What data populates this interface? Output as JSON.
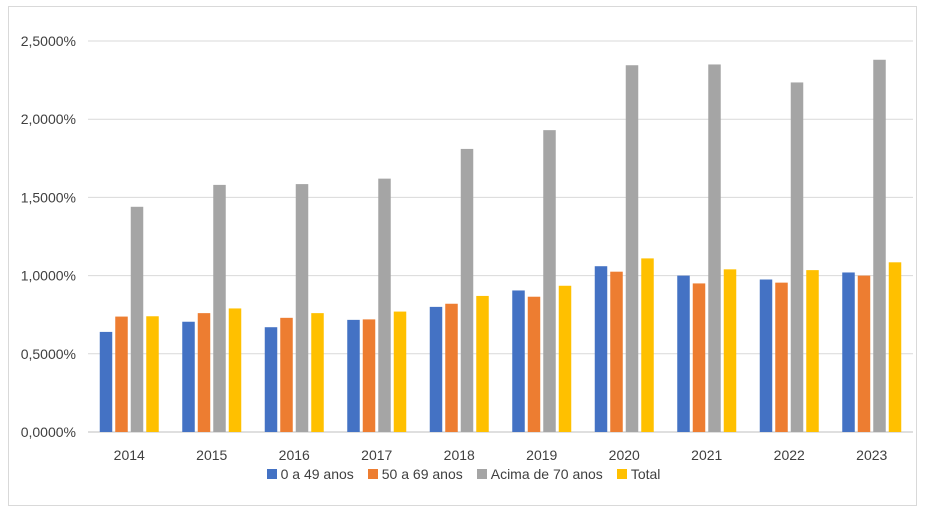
{
  "chart_data": {
    "type": "bar",
    "categories": [
      "2014",
      "2015",
      "2016",
      "2017",
      "2018",
      "2019",
      "2020",
      "2021",
      "2022",
      "2023"
    ],
    "series": [
      {
        "name": "0 a 49 anos",
        "color": "#4472c4",
        "values": [
          0.64,
          0.705,
          0.67,
          0.717,
          0.8,
          0.905,
          1.06,
          1.0,
          0.975,
          1.02
        ]
      },
      {
        "name": "50 a 69 anos",
        "color": "#ed7d31",
        "values": [
          0.738,
          0.76,
          0.73,
          0.72,
          0.82,
          0.865,
          1.025,
          0.95,
          0.955,
          1.0
        ]
      },
      {
        "name": "Acima de 70 anos",
        "color": "#a5a5a5",
        "values": [
          1.44,
          1.58,
          1.585,
          1.62,
          1.81,
          1.93,
          2.345,
          2.35,
          2.235,
          2.38
        ]
      },
      {
        "name": "Total",
        "color": "#ffc000",
        "values": [
          0.74,
          0.79,
          0.76,
          0.77,
          0.87,
          0.935,
          1.11,
          1.04,
          1.035,
          1.085
        ]
      }
    ],
    "ylim": [
      0,
      2.5
    ],
    "yticks": [
      "0,0000%",
      "0,5000%",
      "1,0000%",
      "1,5000%",
      "2,0000%",
      "2,5000%"
    ],
    "grid": true,
    "legend": "bottom"
  }
}
